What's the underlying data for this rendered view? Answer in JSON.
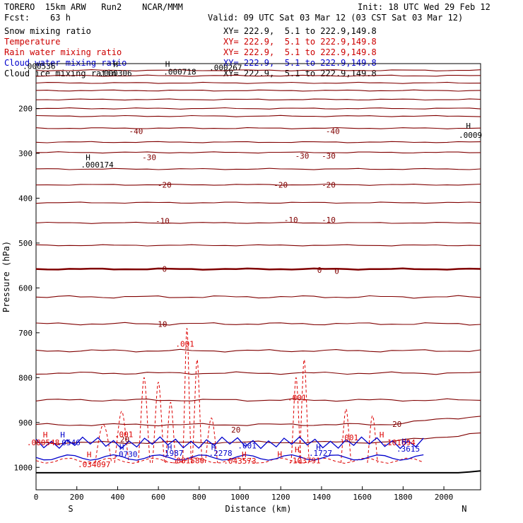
{
  "header": {
    "model": "TORERO  15km ARW   Run2    NCAR/MMM",
    "init": "Init: 18 UTC Wed 29 Feb 12",
    "fcst": "Fcst:    63 h",
    "valid": "Valid: 09 UTC Sat 03 Mar 12 (03 CST Sat 03 Mar 12)",
    "fields": [
      {
        "name": "Snow mixing ratio",
        "xy": "XY= 222.9,  5.1 to 222.9,149.8",
        "color": "#000000"
      },
      {
        "name": "Temperature",
        "xy": "XY= 222.9,  5.1 to 222.9,149.8",
        "color": "#cc0000"
      },
      {
        "name": "Rain water mixing ratio",
        "xy": "XY= 222.9,  5.1 to 222.9,149.8",
        "color": "#cc0000"
      },
      {
        "name": "Cloud water mixing ratio",
        "xy": "XY= 222.9,  5.1 to 222.9,149.8",
        "color": "#0000cc"
      },
      {
        "name": "Cloud ice mixing ratio",
        "xy": "XY= 222.9,  5.1 to 222.9,149.8",
        "color": "#000000"
      }
    ]
  },
  "chart_data": {
    "type": "line",
    "xlabel": "Distance (km)",
    "ylabel": "Pressure (hPa)",
    "xlim": [
      0,
      2180
    ],
    "ylim": [
      1050,
      100
    ],
    "x_ticks": [
      0,
      200,
      400,
      600,
      800,
      1000,
      1200,
      1400,
      1600,
      1800,
      2000
    ],
    "y_ticks": [
      200,
      300,
      400,
      500,
      600,
      700,
      800,
      900,
      1000
    ],
    "x_end_labels": {
      "left": "S",
      "right": "N"
    },
    "colors": {
      "temperature": "#800000",
      "rain": "#dd0000",
      "cloud_water": "#0000cc",
      "ice": "#000000"
    },
    "isotherms_p_at_0km": [
      115,
      127,
      143,
      160,
      180,
      200,
      217,
      244,
      275,
      298,
      335,
      370,
      410,
      455,
      505,
      558,
      620,
      680,
      740,
      790,
      850,
      905,
      945
    ],
    "temperature_labels": [
      {
        "text": "-40",
        "x": 490,
        "p": 252
      },
      {
        "text": "-40",
        "x": 1455,
        "p": 252
      },
      {
        "text": "-30",
        "x": 555,
        "p": 310
      },
      {
        "text": "-30",
        "x": 1305,
        "p": 307
      },
      {
        "text": "-30",
        "x": 1435,
        "p": 307
      },
      {
        "text": "-20",
        "x": 630,
        "p": 372
      },
      {
        "text": "-20",
        "x": 1200,
        "p": 372
      },
      {
        "text": "-20",
        "x": 1435,
        "p": 372
      },
      {
        "text": "-10",
        "x": 620,
        "p": 452
      },
      {
        "text": "-10",
        "x": 1250,
        "p": 450
      },
      {
        "text": "-10",
        "x": 1435,
        "p": 450
      },
      {
        "text": "0",
        "x": 630,
        "p": 559
      },
      {
        "text": "0",
        "x": 1390,
        "p": 562
      },
      {
        "text": "0",
        "x": 1475,
        "p": 564
      },
      {
        "text": "10",
        "x": 620,
        "p": 682
      },
      {
        "text": "20",
        "x": 980,
        "p": 918
      },
      {
        "text": "20",
        "x": 1770,
        "p": 905
      },
      {
        "text": "20",
        "x": 435,
        "p": 939
      }
    ],
    "rain_labels": [
      {
        "text": ".001",
        "x": 730,
        "p": 726
      },
      {
        "text": ".001",
        "x": 1280,
        "p": 846
      },
      {
        "text": ".001",
        "x": 430,
        "p": 928
      },
      {
        "text": ".001",
        "x": 1535,
        "p": 935
      },
      {
        "text": ".034097",
        "x": 285,
        "p": 995
      },
      {
        "text": ".081580",
        "x": 745,
        "p": 986
      },
      {
        "text": ".043573",
        "x": 1000,
        "p": 987
      },
      {
        "text": ".103791",
        "x": 1315,
        "p": 986
      },
      {
        "text": ".101694",
        "x": 1780,
        "p": 946
      },
      {
        "text": ".080548",
        "x": 35,
        "p": 946
      }
    ],
    "cloud_labels": [
      {
        "text": ".0546",
        "x": 160,
        "p": 946
      },
      {
        "text": ".0730",
        "x": 440,
        "p": 972
      },
      {
        "text": ".1987",
        "x": 665,
        "p": 970
      },
      {
        "text": ".2278",
        "x": 905,
        "p": 970
      },
      {
        "text": ".001",
        "x": 1035,
        "p": 953
      },
      {
        "text": ".1727",
        "x": 1395,
        "p": 970
      },
      {
        "text": ".3615",
        "x": 1825,
        "p": 960
      }
    ],
    "ice_labels": [
      {
        "text": ".000536",
        "x": 15,
        "p": 107
      },
      {
        "text": ".000306",
        "x": 390,
        "p": 123
      },
      {
        "text": ".000718",
        "x": 705,
        "p": 120
      },
      {
        "text": ".000267",
        "x": 930,
        "p": 110
      },
      {
        "text": ".000174",
        "x": 300,
        "p": 327
      },
      {
        "text": ".0009",
        "x": 2130,
        "p": 261
      }
    ],
    "max_markers": [
      {
        "x": 45,
        "p": 929,
        "color": "rain"
      },
      {
        "x": 130,
        "p": 929,
        "color": "cloud"
      },
      {
        "x": 420,
        "p": 956,
        "color": "cloud"
      },
      {
        "x": 655,
        "p": 956,
        "color": "cloud"
      },
      {
        "x": 870,
        "p": 956,
        "color": "cloud"
      },
      {
        "x": 1020,
        "p": 973,
        "color": "rain"
      },
      {
        "x": 1280,
        "p": 962,
        "color": "rain"
      },
      {
        "x": 1385,
        "p": 956,
        "color": "cloud"
      },
      {
        "x": 1695,
        "p": 929,
        "color": "rain"
      },
      {
        "x": 1805,
        "p": 944,
        "color": "cloud"
      },
      {
        "x": 1195,
        "p": 972,
        "color": "rain"
      },
      {
        "x": 260,
        "p": 973,
        "color": "rain"
      },
      {
        "x": 255,
        "p": 310,
        "color": "ice"
      },
      {
        "x": 2120,
        "p": 240,
        "color": "ice"
      },
      {
        "x": 645,
        "p": 102,
        "color": "ice"
      },
      {
        "x": 390,
        "p": 103,
        "color": "ice"
      }
    ]
  }
}
